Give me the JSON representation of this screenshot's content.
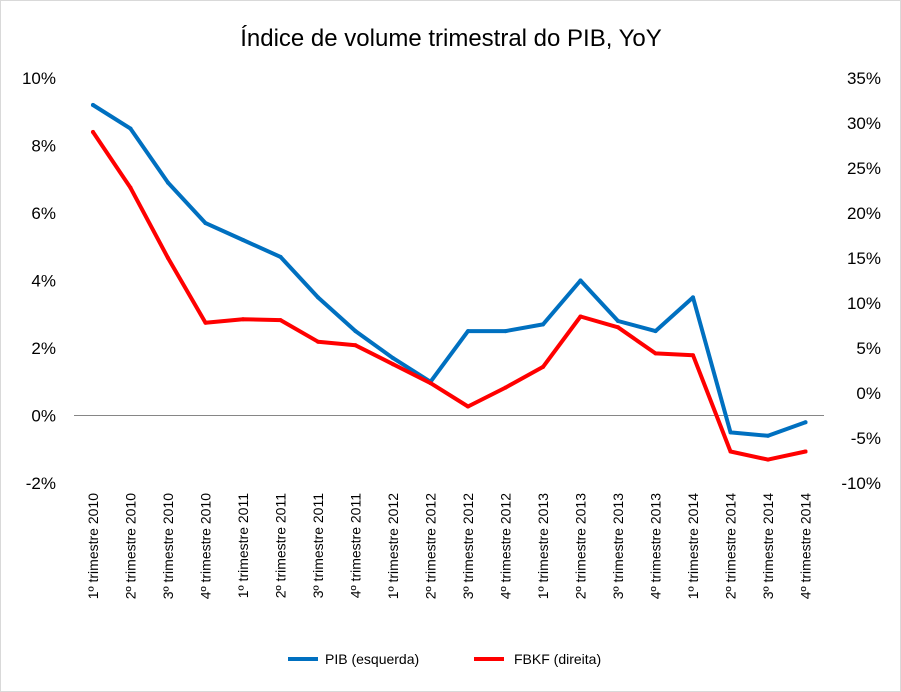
{
  "chart_data": {
    "type": "line",
    "title": "Índice de volume trimestral do PIB, YoY",
    "categories": [
      "1º trimestre 2010",
      "2º trimestre 2010",
      "3º trimestre 2010",
      "4º trimestre 2010",
      "1º trimestre 2011",
      "2º trimestre 2011",
      "3º trimestre 2011",
      "4º trimestre 2011",
      "1º trimestre 2012",
      "2º trimestre 2012",
      "3º trimestre 2012",
      "4º trimestre 2012",
      "1º trimestre 2013",
      "2º trimestre 2013",
      "3º trimestre 2013",
      "4º trimestre 2013",
      "1º trimestre 2014",
      "2º trimestre 2014",
      "3º trimestre 2014",
      "4º trimestre 2014"
    ],
    "series": [
      {
        "name": "PIB (esquerda)",
        "axis": "left",
        "color": "#0070C0",
        "values": [
          9.2,
          8.5,
          6.9,
          5.7,
          5.2,
          4.7,
          3.5,
          2.5,
          1.7,
          1.0,
          2.5,
          2.5,
          2.7,
          4.0,
          2.8,
          2.5,
          3.5,
          -0.5,
          -0.6,
          -0.2
        ]
      },
      {
        "name": "FBKF (direita)",
        "axis": "right",
        "color": "#FF0000",
        "values": [
          29.0,
          22.8,
          15.0,
          7.8,
          8.2,
          8.1,
          5.7,
          5.3,
          3.2,
          1.1,
          -1.5,
          0.6,
          2.9,
          8.5,
          7.3,
          4.4,
          4.2,
          -6.5,
          -7.4,
          -6.5
        ]
      }
    ],
    "y_left": {
      "min": -2,
      "max": 10,
      "step": 2,
      "ticks": [
        "-2%",
        "0%",
        "2%",
        "4%",
        "6%",
        "8%",
        "10%"
      ]
    },
    "y_right": {
      "min": -10,
      "max": 35,
      "step": 5,
      "ticks": [
        "-10%",
        "-5%",
        "0%",
        "5%",
        "10%",
        "15%",
        "20%",
        "25%",
        "30%",
        "35%"
      ]
    },
    "grid": false,
    "zero_line": true,
    "legend_position": "bottom"
  }
}
